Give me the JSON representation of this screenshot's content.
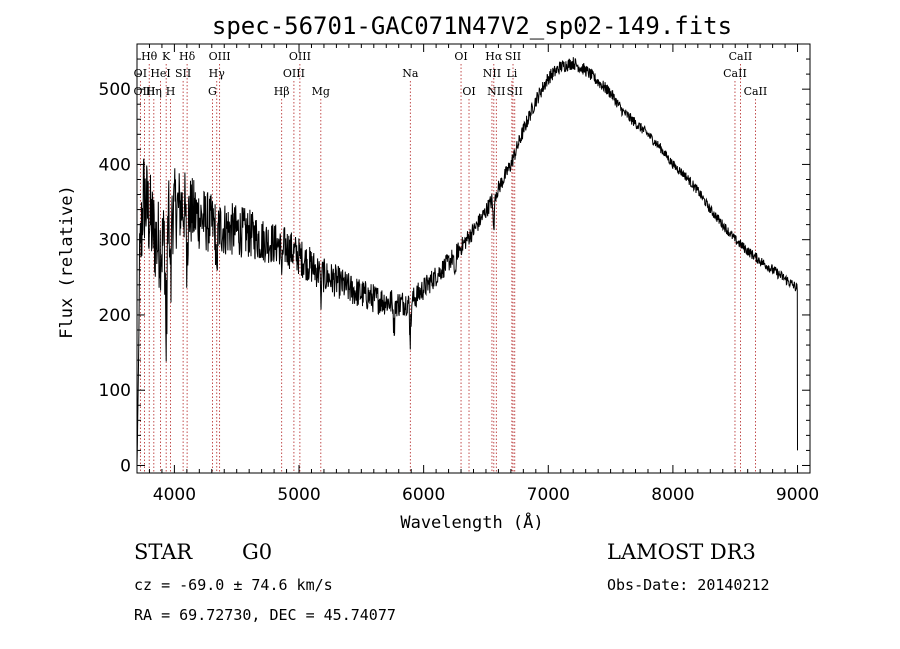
{
  "chart_data": {
    "type": "line",
    "title": "spec-56701-GAC071N47V2_sp02-149.fits",
    "xlabel": "Wavelength (Å)",
    "ylabel": "Flux (relative)",
    "xlim": [
      3700,
      9100
    ],
    "ylim": [
      -10,
      560
    ],
    "x_ticks": [
      4000,
      5000,
      6000,
      7000,
      8000,
      9000
    ],
    "y_ticks": [
      0,
      100,
      200,
      300,
      400,
      500
    ],
    "continuum": [
      [
        3700,
        180
      ],
      [
        3750,
        360
      ],
      [
        3800,
        330
      ],
      [
        3850,
        300
      ],
      [
        3900,
        290
      ],
      [
        3950,
        320
      ],
      [
        4000,
        340
      ],
      [
        4050,
        345
      ],
      [
        4100,
        340
      ],
      [
        4150,
        335
      ],
      [
        4200,
        330
      ],
      [
        4300,
        320
      ],
      [
        4400,
        315
      ],
      [
        4500,
        312
      ],
      [
        4600,
        308
      ],
      [
        4700,
        300
      ],
      [
        4800,
        295
      ],
      [
        4900,
        290
      ],
      [
        5000,
        278
      ],
      [
        5100,
        265
      ],
      [
        5200,
        252
      ],
      [
        5300,
        245
      ],
      [
        5400,
        235
      ],
      [
        5500,
        228
      ],
      [
        5600,
        222
      ],
      [
        5700,
        218
      ],
      [
        5800,
        215
      ],
      [
        5900,
        218
      ],
      [
        6000,
        235
      ],
      [
        6100,
        252
      ],
      [
        6200,
        270
      ],
      [
        6300,
        290
      ],
      [
        6400,
        312
      ],
      [
        6500,
        338
      ],
      [
        6600,
        368
      ],
      [
        6700,
        400
      ],
      [
        6800,
        445
      ],
      [
        6900,
        485
      ],
      [
        7000,
        515
      ],
      [
        7100,
        530
      ],
      [
        7200,
        535
      ],
      [
        7300,
        525
      ],
      [
        7400,
        510
      ],
      [
        7500,
        495
      ],
      [
        7600,
        470
      ],
      [
        7700,
        455
      ],
      [
        7800,
        440
      ],
      [
        7900,
        422
      ],
      [
        8000,
        400
      ],
      [
        8100,
        385
      ],
      [
        8200,
        365
      ],
      [
        8300,
        340
      ],
      [
        8400,
        320
      ],
      [
        8500,
        300
      ],
      [
        8600,
        285
      ],
      [
        8700,
        272
      ],
      [
        8800,
        260
      ],
      [
        8900,
        248
      ],
      [
        9000,
        235
      ]
    ],
    "noise_bands": [
      [
        3700,
        70
      ],
      [
        4000,
        55
      ],
      [
        4300,
        40
      ],
      [
        4800,
        28
      ],
      [
        5300,
        22
      ],
      [
        5800,
        18
      ],
      [
        6300,
        12
      ],
      [
        6800,
        10
      ],
      [
        7400,
        8
      ],
      [
        8000,
        6
      ],
      [
        9000,
        7
      ]
    ],
    "absorption_dips": [
      {
        "x": 3934,
        "depth": 170
      },
      {
        "x": 3969,
        "depth": 150
      },
      {
        "x": 4102,
        "depth": 90
      },
      {
        "x": 4340,
        "depth": 60
      },
      {
        "x": 4861,
        "depth": 40
      },
      {
        "x": 5175,
        "depth": 40
      },
      {
        "x": 5760,
        "depth": 60
      },
      {
        "x": 5893,
        "depth": 55
      },
      {
        "x": 6250,
        "depth": 40
      },
      {
        "x": 6563,
        "depth": 60
      }
    ],
    "lines": [
      {
        "label": "Hθ",
        "x": 3798,
        "row": 0
      },
      {
        "label": "K",
        "x": 3934,
        "row": 0
      },
      {
        "label": "Hδ",
        "x": 4102,
        "row": 0
      },
      {
        "label": "OIII",
        "x": 4363,
        "row": 0
      },
      {
        "label": "OIII",
        "x": 5007,
        "row": 0
      },
      {
        "label": "OI",
        "x": 6300,
        "row": 0
      },
      {
        "label": "Hα",
        "x": 6563,
        "row": 0
      },
      {
        "label": "SII",
        "x": 6717,
        "row": 0
      },
      {
        "label": "CaII",
        "x": 8542,
        "row": 0
      },
      {
        "label": "OI",
        "x": 3727,
        "row": 1
      },
      {
        "label": "HeI",
        "x": 3889,
        "row": 1
      },
      {
        "label": "SII",
        "x": 4070,
        "row": 1
      },
      {
        "label": "Hγ",
        "x": 4340,
        "row": 1
      },
      {
        "label": "OIII",
        "x": 4959,
        "row": 1
      },
      {
        "label": "Na",
        "x": 5893,
        "row": 1
      },
      {
        "label": "NII",
        "x": 6548,
        "row": 1
      },
      {
        "label": "Li",
        "x": 6708,
        "row": 1
      },
      {
        "label": "CaII",
        "x": 8498,
        "row": 1
      },
      {
        "label": "OIII",
        "x": 3760,
        "row": 2
      },
      {
        "label": "Hη",
        "x": 3835,
        "row": 2
      },
      {
        "label": "H",
        "x": 3969,
        "row": 2
      },
      {
        "label": "G",
        "x": 4305,
        "row": 2
      },
      {
        "label": "Hβ",
        "x": 4861,
        "row": 2
      },
      {
        "label": "Mg",
        "x": 5175,
        "row": 2
      },
      {
        "label": "OI",
        "x": 6364,
        "row": 2
      },
      {
        "label": "NII",
        "x": 6583,
        "row": 2
      },
      {
        "label": "SII",
        "x": 6731,
        "row": 2
      },
      {
        "label": "CaII",
        "x": 8662,
        "row": 2
      }
    ]
  },
  "info": {
    "object_type": "STAR",
    "subclass": "G0",
    "survey": "LAMOST DR3",
    "velocity": "cz = -69.0 ± 74.6 km/s",
    "obs_date": "Obs-Date: 20140212",
    "coords": "RA =  69.72730, DEC =  45.74077"
  },
  "colors": {
    "spectrum": "#000000",
    "line_markers": "#b22222",
    "axis": "#000000"
  }
}
